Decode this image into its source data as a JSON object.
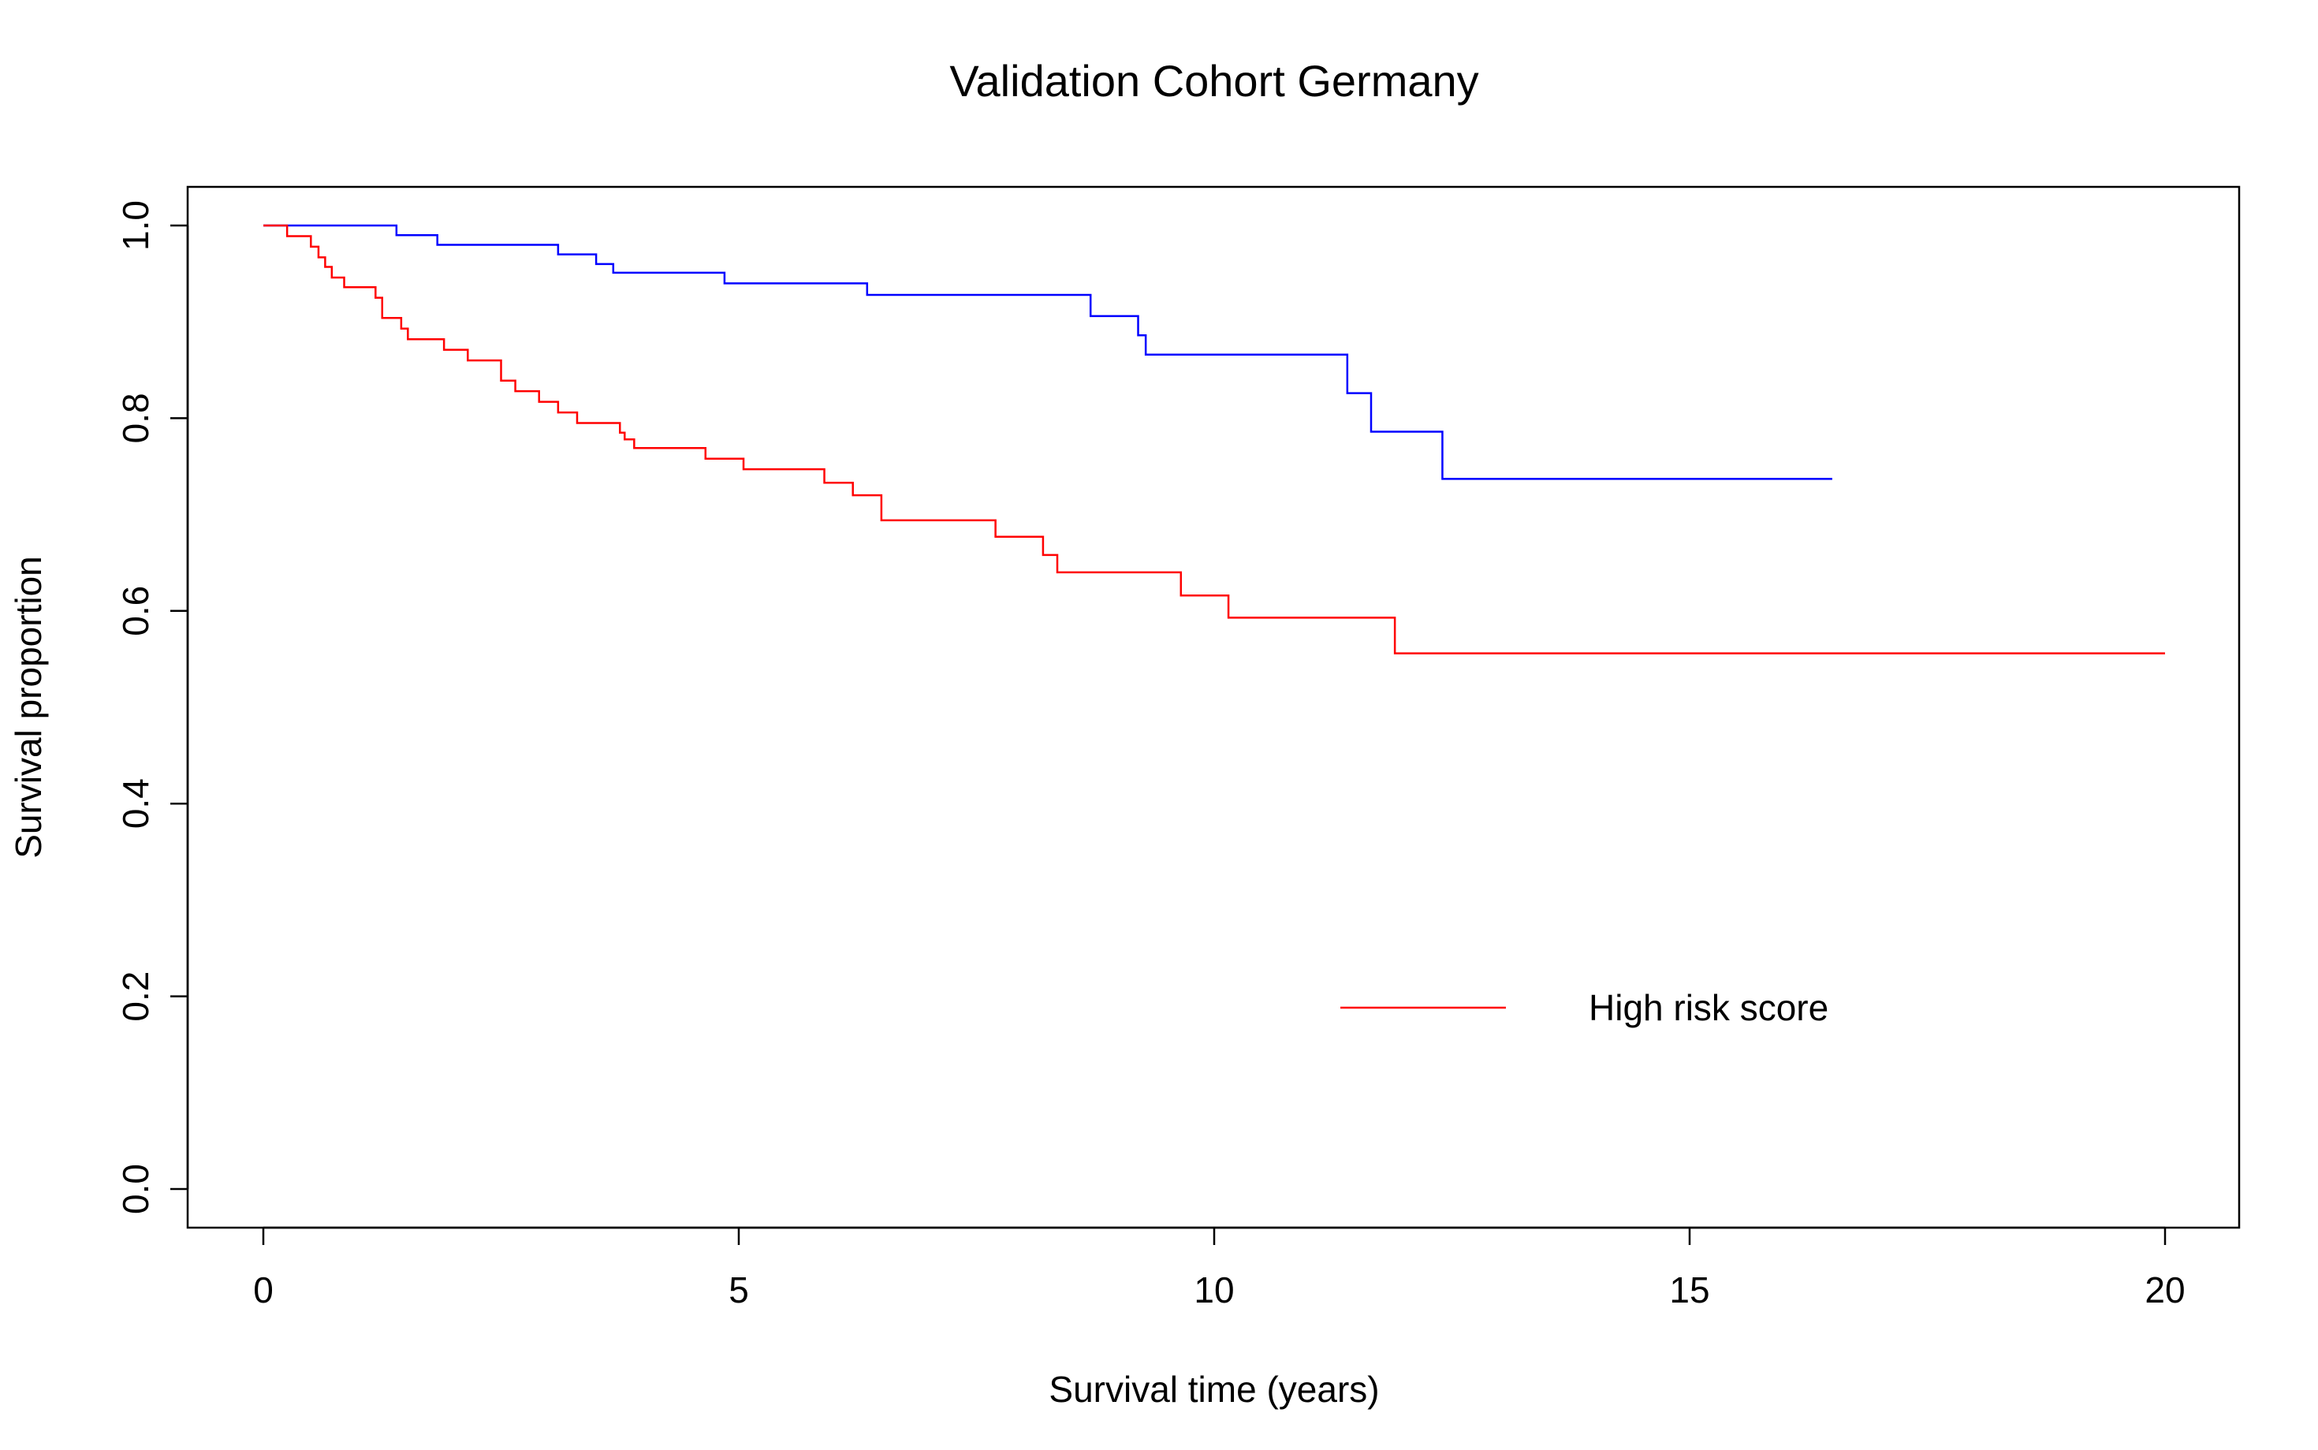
{
  "chart_data": {
    "type": "line",
    "step": true,
    "title": "Validation Cohort Germany",
    "xlabel": "Survival time (years)",
    "ylabel": "Survival proportion",
    "xlim": [
      0,
      20
    ],
    "ylim": [
      0,
      1
    ],
    "xticks": [
      0,
      5,
      10,
      15,
      20
    ],
    "xtick_labels": [
      "0",
      "5",
      "10",
      "15",
      "20"
    ],
    "yticks": [
      0,
      0.2,
      0.4,
      0.6,
      0.8,
      1.0
    ],
    "ytick_labels": [
      "0.0",
      "0.2",
      "0.4",
      "0.6",
      "0.8",
      "1.0"
    ],
    "grid": false,
    "legend_position": "bottom-right",
    "series": [
      {
        "name": "",
        "color": "#0000ff",
        "x": [
          0,
          1.4,
          1.83,
          3.1,
          3.5,
          3.68,
          4.85,
          6.35,
          8.7,
          9.2,
          9.28,
          11.4,
          11.65,
          12.4,
          16.5
        ],
        "y": [
          1.0,
          0.99,
          0.98,
          0.97,
          0.96,
          0.951,
          0.94,
          0.928,
          0.906,
          0.886,
          0.866,
          0.826,
          0.786,
          0.737,
          0.737
        ]
      },
      {
        "name": "High risk score",
        "color": "#ff0000",
        "x": [
          0,
          0.25,
          0.5,
          0.58,
          0.65,
          0.72,
          0.85,
          1.18,
          1.25,
          1.4,
          1.45,
          1.52,
          1.9,
          2.15,
          2.5,
          2.65,
          2.9,
          3.1,
          3.3,
          3.75,
          3.8,
          3.9,
          4.65,
          5.05,
          5.9,
          6.2,
          6.5,
          7.7,
          8.2,
          8.35,
          9.65,
          10.15,
          11.9,
          20
        ],
        "y": [
          1.0,
          0.989,
          0.978,
          0.967,
          0.957,
          0.946,
          0.936,
          0.925,
          0.904,
          0.904,
          0.893,
          0.882,
          0.871,
          0.86,
          0.839,
          0.828,
          0.817,
          0.806,
          0.795,
          0.785,
          0.778,
          0.769,
          0.758,
          0.747,
          0.733,
          0.72,
          0.694,
          0.677,
          0.658,
          0.64,
          0.616,
          0.593,
          0.556,
          0.556
        ]
      }
    ]
  }
}
